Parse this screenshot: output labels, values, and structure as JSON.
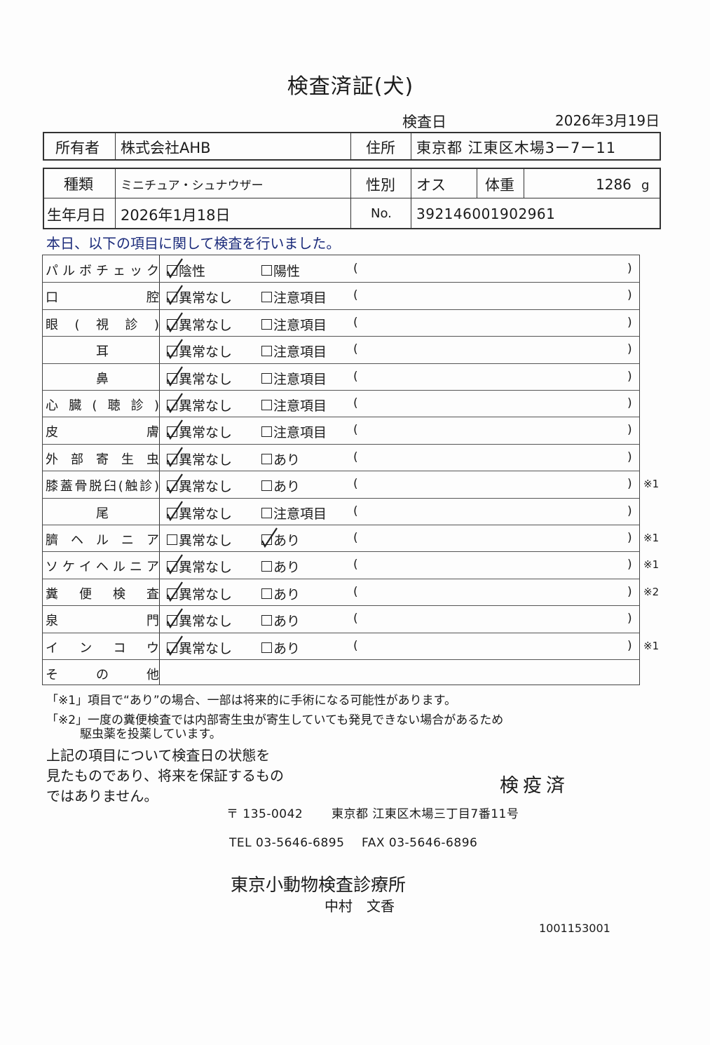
{
  "title": "検査済証(犬)",
  "inspection": {
    "label": "検査日",
    "date": "2026年3月19日"
  },
  "owner": {
    "label": "所有者",
    "value": "株式会社AHB",
    "address_label": "住所",
    "address": "東京都 江東区木場3ー7ー11"
  },
  "animal": {
    "breed_label": "種類",
    "breed": "ミニチュア・シュナウザー",
    "sex_label": "性別",
    "sex": "オス",
    "weight_label": "体重",
    "weight": "1286",
    "weight_unit": "g",
    "birth_label": "生年月日",
    "birth": "2026年1月18日",
    "no_label": "No.",
    "no": "392146001902961"
  },
  "intro": "本日、以下の項目に関して検査を行いました。",
  "paren_open": "(",
  "paren_close": ")",
  "items": [
    {
      "label": "パルボチェック",
      "align": "justify",
      "opt1": "陰性",
      "opt2": "陽性",
      "checked": 1,
      "note": ""
    },
    {
      "label": "口腔",
      "align": "justify",
      "opt1": "異常なし",
      "opt2": "注意項目",
      "checked": 1,
      "note": ""
    },
    {
      "label": "眼(視診)",
      "align": "justify",
      "opt1": "異常なし",
      "opt2": "注意項目",
      "checked": 1,
      "note": ""
    },
    {
      "label": "耳",
      "align": "center",
      "opt1": "異常なし",
      "opt2": "注意項目",
      "checked": 1,
      "note": ""
    },
    {
      "label": "鼻",
      "align": "center",
      "opt1": "異常なし",
      "opt2": "注意項目",
      "checked": 1,
      "note": ""
    },
    {
      "label": "心臓(聴診)",
      "align": "justify",
      "opt1": "異常なし",
      "opt2": "注意項目",
      "checked": 1,
      "note": ""
    },
    {
      "label": "皮膚",
      "align": "justify",
      "opt1": "異常なし",
      "opt2": "注意項目",
      "checked": 1,
      "note": ""
    },
    {
      "label": "外部寄生虫",
      "align": "justify",
      "opt1": "異常なし",
      "opt2": "あり",
      "checked": 1,
      "note": ""
    },
    {
      "label": "膝蓋骨脱臼(触診)",
      "align": "justify",
      "opt1": "異常なし",
      "opt2": "あり",
      "checked": 1,
      "note": "※1"
    },
    {
      "label": "尾",
      "align": "center",
      "opt1": "異常なし",
      "opt2": "注意項目",
      "checked": 1,
      "note": ""
    },
    {
      "label": "臍ヘルニア",
      "align": "justify",
      "opt1": "異常なし",
      "opt2": "あり",
      "checked": 2,
      "note": "※1"
    },
    {
      "label": "ソケイヘルニア",
      "align": "justify",
      "opt1": "異常なし",
      "opt2": "あり",
      "checked": 1,
      "note": "※1"
    },
    {
      "label": "糞便検査",
      "align": "justify",
      "opt1": "異常なし",
      "opt2": "あり",
      "checked": 1,
      "note": "※2"
    },
    {
      "label": "泉門",
      "align": "justify",
      "opt1": "異常なし",
      "opt2": "あり",
      "checked": 1,
      "note": ""
    },
    {
      "label": "インコウ",
      "align": "justify",
      "opt1": "異常なし",
      "opt2": "あり",
      "checked": 1,
      "note": "※1"
    }
  ],
  "other_label": "その他",
  "footnotes": {
    "n1": "「※1」項目で“あり”の場合、一部は将来的に手術になる可能性があります。",
    "n2a": "「※2」一度の糞便検査では内部寄生虫が寄生していても発見できない場合があるため",
    "n2b": "駆虫薬を投薬しています。"
  },
  "disclaimer": [
    "上記の項目について検査日の状態を",
    "見たものであり、将来を保証するもの",
    "ではありません。"
  ],
  "stamp": "検疫済",
  "clinic": {
    "postal": "〒 135-0042",
    "address": "東京都 江東区木場三丁目7番11号",
    "tel": "TEL 03-5646-6895",
    "fax": "FAX 03-5646-6896",
    "name": "東京小動物検査診療所",
    "vet": "中村　文香"
  },
  "doc_code": "1001153001"
}
